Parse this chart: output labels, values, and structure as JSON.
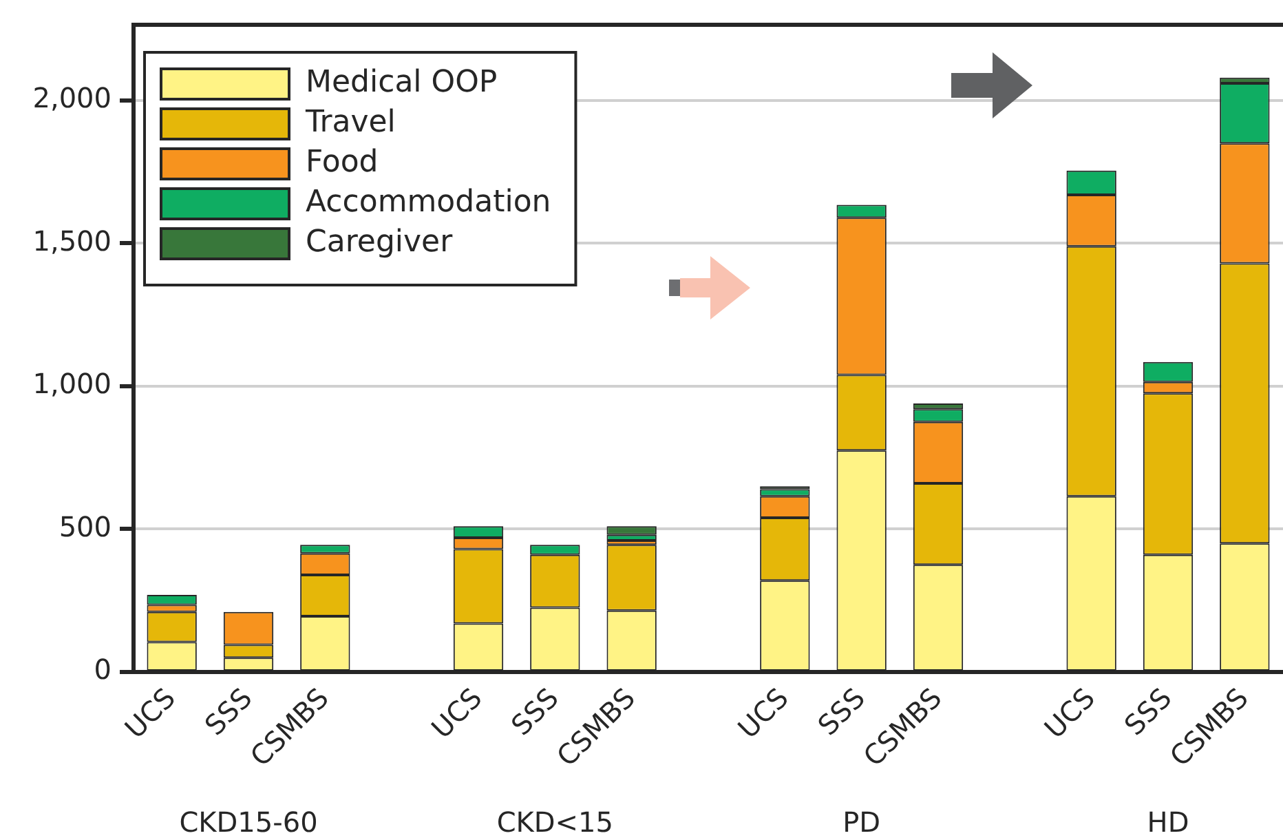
{
  "chart_data": {
    "type": "bar",
    "stacked": true,
    "categories": [
      "UCS",
      "SSS",
      "CSMBS",
      null,
      "UCS",
      "SSS",
      "CSMBS",
      null,
      "UCS",
      "SSS",
      "CSMBS",
      null,
      "UCS",
      "SSS",
      "CSMBS"
    ],
    "series": [
      {
        "name": "Medical OOP",
        "color": "#fff385",
        "values": [
          105,
          50,
          195,
          null,
          170,
          225,
          215,
          null,
          320,
          775,
          375,
          null,
          615,
          410,
          450
        ]
      },
      {
        "name": "Travel",
        "color": "#e5b709",
        "values": [
          105,
          45,
          145,
          null,
          260,
          185,
          230,
          null,
          220,
          265,
          285,
          null,
          875,
          565,
          980
        ]
      },
      {
        "name": "Food",
        "color": "#f7931e",
        "values": [
          25,
          115,
          75,
          null,
          40,
          null,
          15,
          null,
          75,
          550,
          215,
          null,
          180,
          40,
          420
        ]
      },
      {
        "name": "Accommodation",
        "color": "#0fad62",
        "values": [
          35,
          null,
          30,
          null,
          40,
          35,
          20,
          null,
          25,
          45,
          45,
          null,
          85,
          70,
          210
        ]
      },
      {
        "name": "Caregiver",
        "color": "#38773a",
        "values": [
          null,
          null,
          null,
          null,
          null,
          null,
          30,
          null,
          10,
          null,
          20,
          null,
          null,
          null,
          20
        ]
      }
    ],
    "ylim": [
      0,
      2265
    ],
    "yticks": [
      0,
      {
        "value": 500,
        "label": "500"
      },
      {
        "value": 1000,
        "label": "1,000"
      },
      {
        "value": 1500,
        "label": "1,500"
      },
      {
        "value": 2000,
        "label": "2,000"
      }
    ],
    "grid": "y",
    "legend": "top left",
    "annotations": [
      "CKD15-60",
      "CKD<15",
      "PD",
      "HD"
    ]
  }
}
